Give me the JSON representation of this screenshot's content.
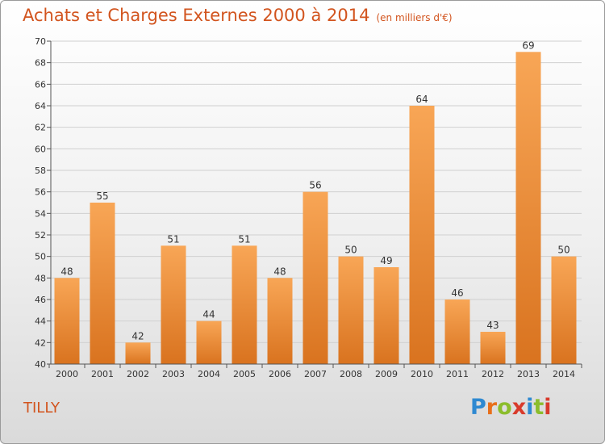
{
  "header": {
    "title": "Achats et Charges Externes 2000 à 2014",
    "subtitle": "(en milliers d'€)"
  },
  "footer": {
    "city": "TILLY",
    "logo_letters": [
      "P",
      "r",
      "o",
      "x",
      "i",
      "t",
      "i"
    ],
    "logo_colors": [
      "#2e89d1",
      "#e86f1a",
      "#8bbd2c",
      "#d83a2b",
      "#2e89d1",
      "#8bbd2c",
      "#d83a2b"
    ]
  },
  "chart_data": {
    "type": "bar",
    "title": "Achats et Charges Externes 2000 à 2014",
    "subtitle": "(en milliers d'€)",
    "categories": [
      "2000",
      "2001",
      "2002",
      "2003",
      "2004",
      "2005",
      "2006",
      "2007",
      "2008",
      "2009",
      "2010",
      "2011",
      "2012",
      "2013",
      "2014"
    ],
    "values": [
      48,
      55,
      42,
      51,
      44,
      51,
      48,
      56,
      50,
      49,
      64,
      46,
      43,
      69,
      50
    ],
    "ylim": [
      40,
      70
    ],
    "yticks": [
      40,
      42,
      44,
      46,
      48,
      50,
      52,
      54,
      56,
      58,
      60,
      62,
      64,
      66,
      68,
      70
    ],
    "grid": true,
    "bar_color_light": "#f8a656",
    "bar_color_dark": "#d9731f"
  }
}
